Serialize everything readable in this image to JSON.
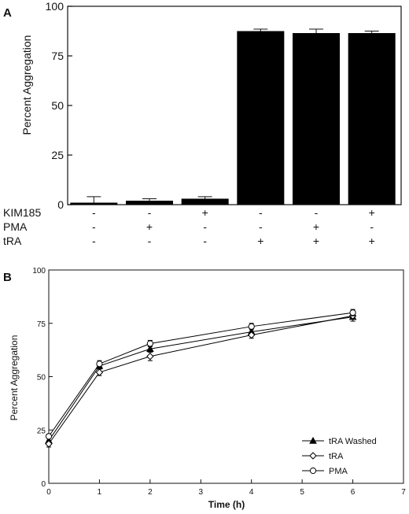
{
  "chart_data": [
    {
      "panel": "A",
      "type": "bar",
      "ylabel": "Percent Aggregation",
      "ylim": [
        0,
        100
      ],
      "yticks": [
        "0",
        "25",
        "50",
        "75",
        "100"
      ],
      "values": [
        1,
        2,
        3,
        87.5,
        86.5,
        86.5
      ],
      "errors": [
        3,
        1,
        1,
        1,
        2,
        1
      ],
      "conditions": [
        {
          "name": "KIM185",
          "marks": [
            "-",
            "-",
            "+",
            "-",
            "-",
            "+"
          ]
        },
        {
          "name": "PMA",
          "marks": [
            "-",
            "+",
            "-",
            "-",
            "+",
            "-"
          ]
        },
        {
          "name": "tRA",
          "marks": [
            "-",
            "-",
            "-",
            "+",
            "+",
            "+"
          ]
        }
      ]
    },
    {
      "panel": "B",
      "type": "line",
      "xlabel": "Time (h)",
      "ylabel": "Percent Aggregation",
      "xlim": [
        0,
        7
      ],
      "ylim": [
        0,
        100
      ],
      "xticks": [
        "0",
        "1",
        "2",
        "3",
        "4",
        "5",
        "6",
        "7"
      ],
      "yticks": [
        "0",
        "25",
        "50",
        "75",
        "100"
      ],
      "x": [
        0,
        1,
        2,
        4,
        6
      ],
      "legend_position": "bottom-right",
      "series": [
        {
          "name": "tRA Washed",
          "marker": "triangle",
          "values": [
            20,
            55,
            63,
            71,
            78
          ],
          "errors": [
            1.5,
            1.5,
            1.5,
            1.5,
            2
          ]
        },
        {
          "name": "tRA",
          "marker": "diamond",
          "values": [
            18.5,
            52,
            59.5,
            69.5,
            78.5
          ],
          "errors": [
            1.5,
            1.5,
            2,
            1.5,
            1.5
          ]
        },
        {
          "name": "PMA",
          "marker": "circle",
          "values": [
            22,
            56,
            65.5,
            73.5,
            80
          ],
          "errors": [
            1,
            1.5,
            1.5,
            1.5,
            1.5
          ]
        }
      ]
    }
  ]
}
